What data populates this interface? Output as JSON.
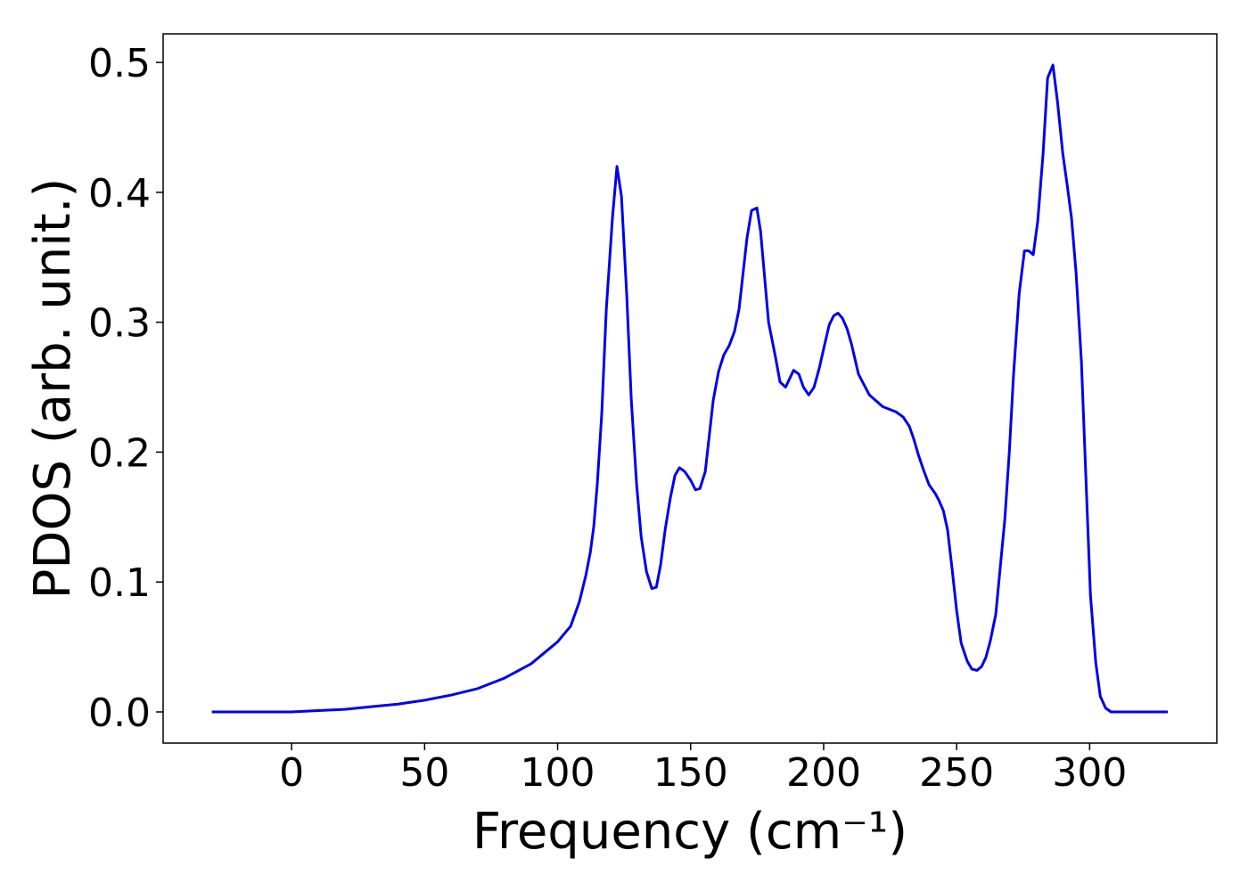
{
  "chart_data": {
    "type": "line",
    "x_label": "Frequency (cm⁻¹)",
    "y_label": "PDOS (arb. unit.)",
    "x": [
      -30,
      0,
      10,
      20,
      30,
      40,
      50,
      60,
      70,
      80,
      90,
      100,
      104.9,
      108.2,
      110.6,
      112.3,
      113.6,
      114.9,
      116.6,
      118.3,
      120.6,
      122.3,
      124,
      126,
      127.7,
      129.7,
      131.4,
      133.4,
      135.4,
      137.1,
      138.7,
      140.4,
      142.4,
      144.1,
      145.8,
      147.8,
      150.1,
      151.8,
      153.5,
      155.5,
      158.5,
      160.5,
      162.5,
      164.5,
      166.5,
      168.2,
      171.2,
      172.9,
      174.9,
      176.3,
      179.3,
      182,
      183.6,
      185.7,
      188.7,
      190.7,
      192.4,
      194.4,
      196.4,
      198.4,
      200.4,
      202.1,
      203.8,
      205.4,
      207.1,
      208.8,
      210.5,
      213.1,
      217.2,
      222.2,
      227.2,
      229.9,
      232.2,
      233.9,
      235.6,
      237.6,
      239.6,
      242,
      243.3,
      245,
      246.6,
      248.3,
      250,
      251.7,
      254,
      255.7,
      257.7,
      259.4,
      261,
      262.7,
      264.7,
      266.1,
      268.1,
      269.8,
      271.4,
      273.5,
      275.5,
      277.1,
      278.8,
      280.5,
      282.5,
      284.2,
      286.2,
      287.9,
      289.9,
      291.6,
      293.2,
      294.9,
      296.9,
      298.6,
      300.3,
      302.3,
      304,
      306,
      308,
      329.4
    ],
    "values": [
      0,
      0,
      0.001,
      0.002,
      0.004,
      0.006,
      0.009,
      0.013,
      0.018,
      0.026,
      0.037,
      0.054,
      0.066,
      0.085,
      0.105,
      0.123,
      0.143,
      0.175,
      0.23,
      0.31,
      0.38,
      0.42,
      0.397,
      0.32,
      0.24,
      0.175,
      0.135,
      0.108,
      0.095,
      0.096,
      0.113,
      0.14,
      0.165,
      0.182,
      0.188,
      0.185,
      0.178,
      0.171,
      0.172,
      0.185,
      0.24,
      0.262,
      0.275,
      0.282,
      0.293,
      0.31,
      0.365,
      0.386,
      0.388,
      0.37,
      0.3,
      0.272,
      0.254,
      0.25,
      0.263,
      0.26,
      0.25,
      0.244,
      0.25,
      0.265,
      0.283,
      0.298,
      0.305,
      0.307,
      0.303,
      0.295,
      0.283,
      0.26,
      0.244,
      0.235,
      0.231,
      0.227,
      0.22,
      0.21,
      0.198,
      0.186,
      0.175,
      0.168,
      0.163,
      0.155,
      0.14,
      0.11,
      0.078,
      0.053,
      0.039,
      0.033,
      0.032,
      0.035,
      0.042,
      0.055,
      0.075,
      0.105,
      0.148,
      0.2,
      0.26,
      0.322,
      0.355,
      0.355,
      0.352,
      0.378,
      0.43,
      0.488,
      0.498,
      0.47,
      0.43,
      0.405,
      0.38,
      0.338,
      0.27,
      0.18,
      0.09,
      0.038,
      0.012,
      0.003,
      0,
      0
    ],
    "color": "#0000ee",
    "xlim": [
      -48.3,
      347.8
    ],
    "ylim": [
      -0.024,
      0.522
    ],
    "xticks": [
      0,
      50,
      100,
      150,
      200,
      250,
      300
    ],
    "yticks": [
      {
        "value": 0,
        "label": "0.0"
      },
      0.1,
      0.2,
      0.3,
      0.4,
      0.5
    ]
  }
}
